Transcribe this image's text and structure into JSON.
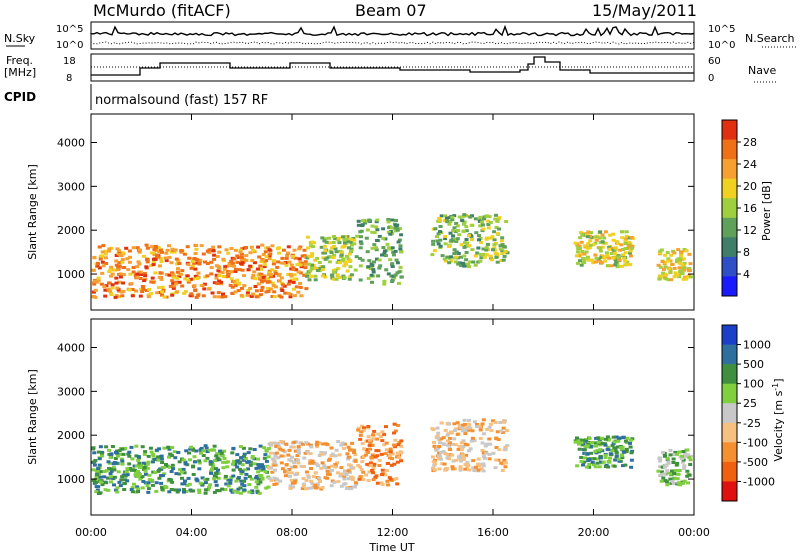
{
  "header": {
    "station": "McMurdo (fitACF)",
    "beam": "Beam 07",
    "date": "15/May/2011"
  },
  "top_panels": {
    "nsky_label": "N.Sky",
    "nsky_ticks": [
      "10^5",
      "10^0"
    ],
    "nsearch_label": "N.Search",
    "nsearch_ticks": [
      "10^5",
      "10^0"
    ],
    "freq_label": "Freq.",
    "freq_unit": "[MHz]",
    "freq_ticks": [
      "18",
      "8"
    ],
    "nave_label": "Nave",
    "nave_ticks": [
      "60",
      "0"
    ],
    "cpid_label": "CPID",
    "cpid_text": "normalsound (fast) 157 RF"
  },
  "chart_data": [
    {
      "type": "heatmap",
      "title": "",
      "quantity": "Power",
      "xlabel": "",
      "ylabel": "Slant Range [km]",
      "x_range_hours": [
        0,
        24
      ],
      "x_ticks": [
        "00:00",
        "04:00",
        "08:00",
        "12:00",
        "16:00",
        "20:00",
        "00:00"
      ],
      "y_range": [
        180,
        4650
      ],
      "y_ticks": [
        1000,
        2000,
        3000,
        4000
      ],
      "colorbar": {
        "label": "Power [dB]",
        "range": [
          0,
          32
        ],
        "ticks": [
          "4",
          "8",
          "12",
          "16",
          "20",
          "24",
          "28"
        ],
        "colors": [
          "#1a1aff",
          "#2f4fc6",
          "#3f7f6a",
          "#5fa05a",
          "#9fcf3f",
          "#f0d020",
          "#f5a030",
          "#f07018",
          "#e03010"
        ]
      },
      "scatter_regions": [
        {
          "t": [
            0.0,
            8.5
          ],
          "r": [
            500,
            1700
          ],
          "level": 26
        },
        {
          "t": [
            8.5,
            10.5
          ],
          "r": [
            900,
            1900
          ],
          "level": 16
        },
        {
          "t": [
            10.5,
            12.3
          ],
          "r": [
            800,
            2300
          ],
          "level": 12
        },
        {
          "t": [
            13.5,
            15.5
          ],
          "r": [
            1200,
            2400
          ],
          "level": 14
        },
        {
          "t": [
            15.5,
            16.5
          ],
          "r": [
            1300,
            2400
          ],
          "level": 16
        },
        {
          "t": [
            19.2,
            21.5
          ],
          "r": [
            1200,
            2000
          ],
          "level": 18
        },
        {
          "t": [
            22.5,
            23.8
          ],
          "r": [
            900,
            1600
          ],
          "level": 20
        }
      ]
    },
    {
      "type": "heatmap",
      "title": "",
      "quantity": "Velocity",
      "xlabel": "Time UT",
      "ylabel": "Slant Range [km]",
      "x_range_hours": [
        0,
        24
      ],
      "x_ticks": [
        "00:00",
        "04:00",
        "08:00",
        "12:00",
        "16:00",
        "20:00",
        "00:00"
      ],
      "y_range": [
        180,
        4650
      ],
      "y_ticks": [
        1000,
        2000,
        3000,
        4000
      ],
      "colorbar": {
        "label": "Velocity [m s^-1]",
        "unit_main": "Velocity [m s",
        "unit_exp": "-1",
        "ticks": [
          "1000",
          "500",
          "100",
          "25",
          "-25",
          "-100",
          "-500",
          "-1000"
        ],
        "colors": [
          "#1a3fc8",
          "#2f6f9f",
          "#3f8f3f",
          "#7fcf3f",
          "#c8c8c8",
          "#f5c080",
          "#f59030",
          "#f06010",
          "#e01010"
        ]
      },
      "scatter_regions": [
        {
          "t": [
            0.0,
            7.0
          ],
          "r": [
            700,
            1800
          ],
          "level": 2
        },
        {
          "t": [
            7.0,
            10.5
          ],
          "r": [
            800,
            1900
          ],
          "level": 5
        },
        {
          "t": [
            10.5,
            12.3
          ],
          "r": [
            900,
            2300
          ],
          "level": 6
        },
        {
          "t": [
            13.5,
            16.5
          ],
          "r": [
            1200,
            2400
          ],
          "level": 5
        },
        {
          "t": [
            19.2,
            21.5
          ],
          "r": [
            1300,
            2000
          ],
          "level": 2
        },
        {
          "t": [
            22.5,
            23.8
          ],
          "r": [
            900,
            1700
          ],
          "level": 3
        }
      ]
    }
  ]
}
